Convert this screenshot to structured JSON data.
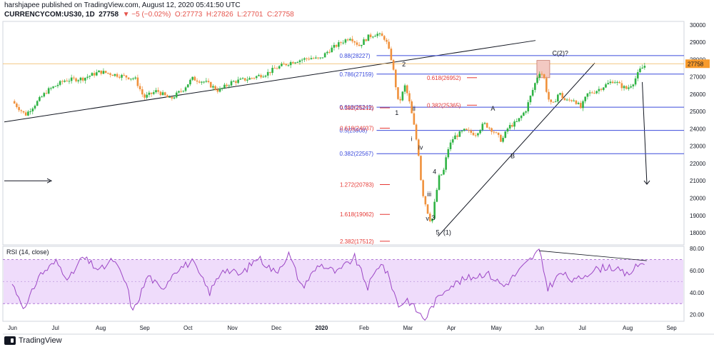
{
  "header": {
    "publisher_line": "harshjapee published on TradingView.com, August 12, 2020 05:41:50 UTC",
    "symbol": "CURRENCYCOM:US30, 1D",
    "last": "27758",
    "change": "▼ −5 (−0.02%)",
    "o": "O:27773",
    "h": "H:27826",
    "l": "L:27701",
    "c": "C:27758"
  },
  "footer": {
    "brand": "TradingView"
  },
  "colors": {
    "up": "#26a69a",
    "up_green": "#2fb344",
    "down": "#ef5350",
    "candle_orange": "#f0913c",
    "fib_blue": "#3b4bdc",
    "fib_red": "#e53935",
    "rsi_line": "#9c46c5",
    "rsi_band": "#efdcfb"
  },
  "chart_data": {
    "type": "candlestick",
    "price_axis": {
      "ticks": [
        18000,
        19000,
        20000,
        21000,
        22000,
        23000,
        24000,
        25000,
        26000,
        27000,
        28000,
        29000,
        30000
      ],
      "range": [
        17300,
        30200
      ],
      "last_price": "27758"
    },
    "time_axis": {
      "labels": [
        "Jun",
        "Jul",
        "Aug",
        "Sep",
        "Oct",
        "Nov",
        "Dec",
        "2020",
        "Feb",
        "Mar",
        "Apr",
        "May",
        "Jun",
        "Jul",
        "Aug",
        "Sep"
      ]
    },
    "price_path": [
      {
        "m": 0,
        "p": 25600
      },
      {
        "m": 0.3,
        "p": 24800
      },
      {
        "m": 0.8,
        "p": 26200
      },
      {
        "m": 1.2,
        "p": 26800
      },
      {
        "m": 1.6,
        "p": 26900
      },
      {
        "m": 2.0,
        "p": 27300
      },
      {
        "m": 2.4,
        "p": 27100
      },
      {
        "m": 2.8,
        "p": 26900
      },
      {
        "m": 3.0,
        "p": 25800
      },
      {
        "m": 3.3,
        "p": 26200
      },
      {
        "m": 3.6,
        "p": 25700
      },
      {
        "m": 3.9,
        "p": 26300
      },
      {
        "m": 4.1,
        "p": 26900
      },
      {
        "m": 4.4,
        "p": 26700
      },
      {
        "m": 4.7,
        "p": 26200
      },
      {
        "m": 5.0,
        "p": 26700
      },
      {
        "m": 5.4,
        "p": 26900
      },
      {
        "m": 5.8,
        "p": 27200
      },
      {
        "m": 6.0,
        "p": 27500
      },
      {
        "m": 6.4,
        "p": 27900
      },
      {
        "m": 6.8,
        "p": 28100
      },
      {
        "m": 7.0,
        "p": 28000
      },
      {
        "m": 7.2,
        "p": 28500
      },
      {
        "m": 7.5,
        "p": 29000
      },
      {
        "m": 7.7,
        "p": 29300
      },
      {
        "m": 7.9,
        "p": 28800
      },
      {
        "m": 8.1,
        "p": 29300
      },
      {
        "m": 8.3,
        "p": 29500
      },
      {
        "m": 8.5,
        "p": 29200
      },
      {
        "m": 8.65,
        "p": 27900
      },
      {
        "m": 8.8,
        "p": 25400
      },
      {
        "m": 8.95,
        "p": 26500
      },
      {
        "m": 9.05,
        "p": 25500
      },
      {
        "m": 9.15,
        "p": 24200
      },
      {
        "m": 9.25,
        "p": 22700
      },
      {
        "m": 9.33,
        "p": 20500
      },
      {
        "m": 9.45,
        "p": 19300
      },
      {
        "m": 9.55,
        "p": 18500
      },
      {
        "m": 9.62,
        "p": 19700
      },
      {
        "m": 9.72,
        "p": 21200
      },
      {
        "m": 9.82,
        "p": 21500
      },
      {
        "m": 9.92,
        "p": 22800
      },
      {
        "m": 10.05,
        "p": 23500
      },
      {
        "m": 10.3,
        "p": 23900
      },
      {
        "m": 10.55,
        "p": 23700
      },
      {
        "m": 10.75,
        "p": 24300
      },
      {
        "m": 10.95,
        "p": 23900
      },
      {
        "m": 11.15,
        "p": 23300
      },
      {
        "m": 11.3,
        "p": 24100
      },
      {
        "m": 11.5,
        "p": 24400
      },
      {
        "m": 11.7,
        "p": 25100
      },
      {
        "m": 11.85,
        "p": 26200
      },
      {
        "m": 12.0,
        "p": 27300
      },
      {
        "m": 12.1,
        "p": 27100
      },
      {
        "m": 12.2,
        "p": 25800
      },
      {
        "m": 12.3,
        "p": 25300
      },
      {
        "m": 12.45,
        "p": 26100
      },
      {
        "m": 12.6,
        "p": 25600
      },
      {
        "m": 12.8,
        "p": 25700
      },
      {
        "m": 12.95,
        "p": 25200
      },
      {
        "m": 13.1,
        "p": 26000
      },
      {
        "m": 13.3,
        "p": 26200
      },
      {
        "m": 13.5,
        "p": 26500
      },
      {
        "m": 13.7,
        "p": 26800
      },
      {
        "m": 13.85,
        "p": 26500
      },
      {
        "m": 14.0,
        "p": 26300
      },
      {
        "m": 14.15,
        "p": 26700
      },
      {
        "m": 14.3,
        "p": 27400
      },
      {
        "m": 14.45,
        "p": 27760
      }
    ],
    "levels": [
      {
        "price": 28227,
        "label": "0.88(28227)",
        "color": "blue",
        "from_m": 8.3
      },
      {
        "price": 27159,
        "label": "0.786(27159)",
        "color": "blue",
        "from_m": 8.3
      },
      {
        "price": 25249,
        "label": "0.618(25249)",
        "color": "blue",
        "from_m": 8.3
      },
      {
        "price": 23908,
        "label": "0.5(23908)",
        "color": "blue",
        "from_m": 8.3
      },
      {
        "price": 22567,
        "label": "0.382(22567)",
        "color": "blue",
        "from_m": 8.3
      }
    ],
    "red_labels": [
      {
        "price": 26952,
        "label": "0.618(26952)"
      },
      {
        "price": 25365,
        "label": "0.382(25365)"
      },
      {
        "price": 25212,
        "label": "0.382(25212)"
      },
      {
        "price": 24037,
        "label": "0.618(24037)"
      },
      {
        "price": 20783,
        "label": "1.272(20783)"
      },
      {
        "price": 19062,
        "label": "1.618(19062)"
      },
      {
        "price": 17512,
        "label": "2.382(17512)"
      }
    ],
    "wave_labels": [
      {
        "m": 8.72,
        "price": 24800,
        "text": "1"
      },
      {
        "m": 8.88,
        "price": 27600,
        "text": "2"
      },
      {
        "m": 9.12,
        "price": 25050,
        "text": "ii"
      },
      {
        "m": 9.08,
        "price": 23300,
        "text": "i"
      },
      {
        "m": 9.25,
        "price": 22800,
        "text": "iv"
      },
      {
        "m": 9.58,
        "price": 21400,
        "text": "4"
      },
      {
        "m": 9.45,
        "price": 20100,
        "text": "iii"
      },
      {
        "m": 9.42,
        "price": 18700,
        "text": "v"
      },
      {
        "m": 9.55,
        "price": 18750,
        "text": "3"
      },
      {
        "m": 9.65,
        "price": 17900,
        "text": "5"
      },
      {
        "m": 9.82,
        "price": 17900,
        "text": "(1)"
      },
      {
        "m": 10.9,
        "price": 25050,
        "text": "A"
      },
      {
        "m": 11.35,
        "price": 22300,
        "text": "B"
      },
      {
        "m": 12.3,
        "price": 28250,
        "text": "C(2)?"
      }
    ],
    "rsi": {
      "title": "RSI (14, close)",
      "ticks": [
        20.0,
        40.0,
        60.0,
        80.0
      ],
      "band": [
        30,
        70
      ],
      "range": [
        14,
        82
      ],
      "path": [
        {
          "m": 0,
          "p": 48
        },
        {
          "m": 0.3,
          "p": 25
        },
        {
          "m": 0.6,
          "p": 55
        },
        {
          "m": 1.0,
          "p": 68
        },
        {
          "m": 1.3,
          "p": 52
        },
        {
          "m": 1.6,
          "p": 72
        },
        {
          "m": 2.0,
          "p": 60
        },
        {
          "m": 2.3,
          "p": 70
        },
        {
          "m": 2.6,
          "p": 48
        },
        {
          "m": 2.75,
          "p": 22
        },
        {
          "m": 3.1,
          "p": 56
        },
        {
          "m": 3.4,
          "p": 42
        },
        {
          "m": 3.7,
          "p": 60
        },
        {
          "m": 4.1,
          "p": 68
        },
        {
          "m": 4.5,
          "p": 40
        },
        {
          "m": 4.8,
          "p": 62
        },
        {
          "m": 5.2,
          "p": 56
        },
        {
          "m": 5.6,
          "p": 72
        },
        {
          "m": 6.0,
          "p": 58
        },
        {
          "m": 6.3,
          "p": 75
        },
        {
          "m": 6.6,
          "p": 45
        },
        {
          "m": 7.0,
          "p": 66
        },
        {
          "m": 7.4,
          "p": 58
        },
        {
          "m": 7.8,
          "p": 72
        },
        {
          "m": 8.1,
          "p": 45
        },
        {
          "m": 8.4,
          "p": 68
        },
        {
          "m": 8.6,
          "p": 52
        },
        {
          "m": 8.8,
          "p": 28
        },
        {
          "m": 9.0,
          "p": 34
        },
        {
          "m": 9.25,
          "p": 22
        },
        {
          "m": 9.4,
          "p": 16
        },
        {
          "m": 9.6,
          "p": 30
        },
        {
          "m": 9.9,
          "p": 45
        },
        {
          "m": 10.3,
          "p": 52
        },
        {
          "m": 10.8,
          "p": 58
        },
        {
          "m": 11.2,
          "p": 46
        },
        {
          "m": 11.6,
          "p": 62
        },
        {
          "m": 12.0,
          "p": 78
        },
        {
          "m": 12.2,
          "p": 44
        },
        {
          "m": 12.5,
          "p": 58
        },
        {
          "m": 12.8,
          "p": 50
        },
        {
          "m": 13.2,
          "p": 60
        },
        {
          "m": 13.6,
          "p": 64
        },
        {
          "m": 14.0,
          "p": 56
        },
        {
          "m": 14.3,
          "p": 66
        },
        {
          "m": 14.45,
          "p": 69
        }
      ]
    }
  }
}
